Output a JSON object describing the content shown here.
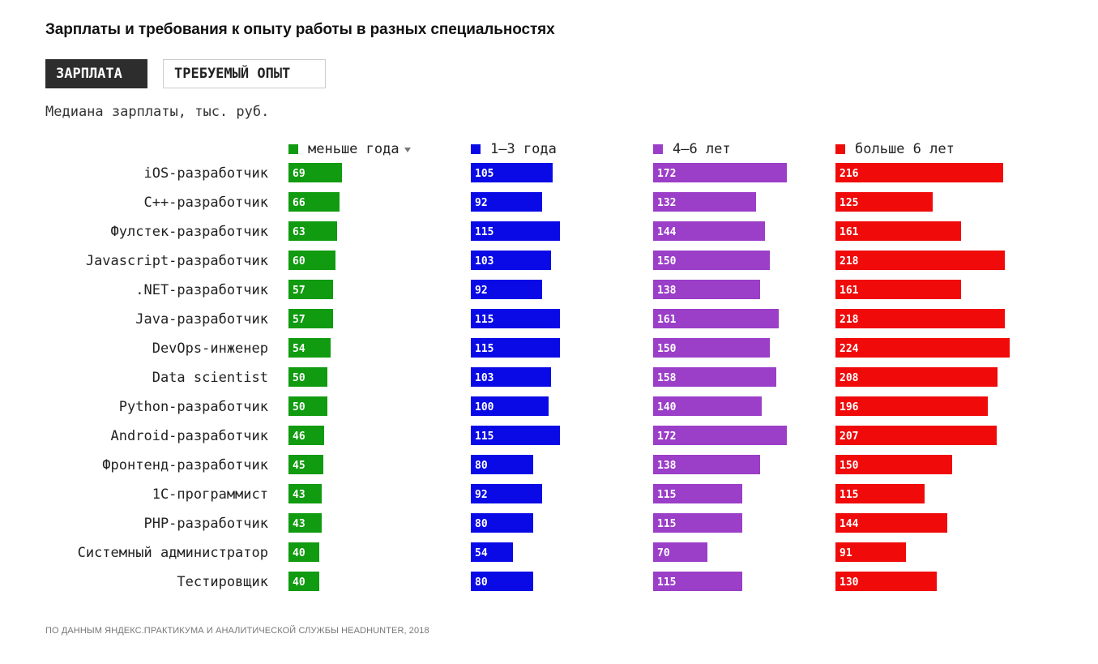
{
  "title": "Зарплаты и требования к опыту работы в разных специальностях",
  "tabs": [
    {
      "label": "ЗАРПЛАТА",
      "active": true
    },
    {
      "label": "ТРЕБУЕМЫЙ ОПЫТ",
      "active": false
    }
  ],
  "subtitle": "Медиана зарплаты, тыс. руб.",
  "footer": "ПО ДАННЫМ ЯНДЕКС.ПРАКТИКУМА И АНАЛИТИЧЕСКОЙ СЛУЖБЫ HEADHUNTER, 2018",
  "chart_data": {
    "type": "bar",
    "orientation": "horizontal",
    "sort_icon": "sort-desc-icon",
    "categories": [
      "iOS-разработчик",
      "C++-разработчик",
      "Фулстек-разработчик",
      "Javascript-разработчик",
      ".NET-разработчик",
      "Java-разработчик",
      "DevOps-инженер",
      "Data scientist",
      "Python-разработчик",
      "Android-разработчик",
      "Фронтенд-разработчик",
      "1С-программист",
      "PHP-разработчик",
      "Системный администратор",
      "Тестировщик"
    ],
    "series": [
      {
        "name": "меньше года",
        "color": "#109b10",
        "sorted": true,
        "values": [
          69,
          66,
          63,
          60,
          57,
          57,
          54,
          50,
          50,
          46,
          45,
          43,
          43,
          40,
          40
        ]
      },
      {
        "name": "1–3 года",
        "color": "#0a0ae6",
        "values": [
          105,
          92,
          115,
          103,
          92,
          115,
          115,
          103,
          100,
          115,
          80,
          92,
          80,
          54,
          80
        ]
      },
      {
        "name": "4–6 лет",
        "color": "#9b3ec8",
        "values": [
          172,
          132,
          144,
          150,
          138,
          161,
          150,
          158,
          140,
          172,
          138,
          115,
          115,
          70,
          115
        ]
      },
      {
        "name": "больше 6 лет",
        "color": "#f00a0a",
        "values": [
          216,
          125,
          161,
          218,
          161,
          218,
          224,
          208,
          196,
          207,
          150,
          115,
          144,
          91,
          130
        ]
      }
    ],
    "grid": false,
    "legend": "top"
  }
}
